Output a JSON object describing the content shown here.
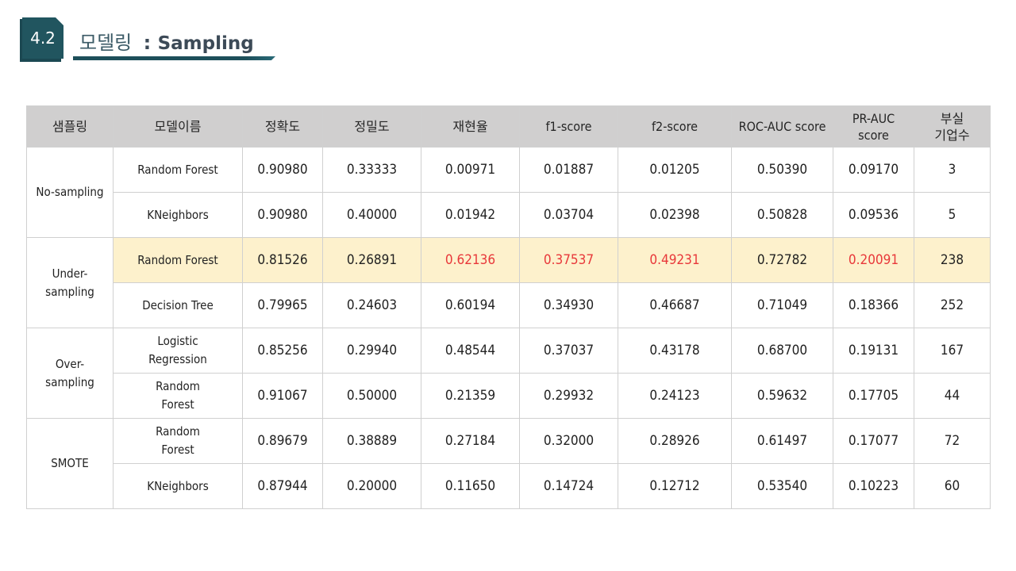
{
  "header": {
    "section_number": "4.2",
    "title_ko": "모델링",
    "title_sep": " : ",
    "title_en": "Sampling"
  },
  "table": {
    "columns": [
      "샘플링",
      "모델이름",
      "정확도",
      "정밀도",
      "재현율",
      "f1-score",
      "f2-score",
      "ROC-AUC score",
      "PR-AUC score",
      "부실\n기업수"
    ],
    "groups": [
      {
        "name": "No-sampling",
        "rows": [
          {
            "model": "Random Forest",
            "values": [
              "0.90980",
              "0.33333",
              "0.00971",
              "0.01887",
              "0.01205",
              "0.50390",
              "0.09170",
              "3"
            ]
          },
          {
            "model": "KNeighbors",
            "values": [
              "0.90980",
              "0.40000",
              "0.01942",
              "0.03704",
              "0.02398",
              "0.50828",
              "0.09536",
              "5"
            ]
          }
        ]
      },
      {
        "name": "Under-sampling",
        "rows": [
          {
            "model": "Random Forest",
            "values": [
              "0.81526",
              "0.26891",
              "0.62136",
              "0.37537",
              "0.49231",
              "0.72782",
              "0.20091",
              "238"
            ]
          },
          {
            "model": "Decision Tree",
            "values": [
              "0.79965",
              "0.24603",
              "0.60194",
              "0.34930",
              "0.46687",
              "0.71049",
              "0.18366",
              "252"
            ]
          }
        ]
      },
      {
        "name": "Over-\nsampling",
        "rows": [
          {
            "model": "Logistic\nRegression",
            "values": [
              "0.85256",
              "0.29940",
              "0.48544",
              "0.37037",
              "0.43178",
              "0.68700",
              "0.19131",
              "167"
            ]
          },
          {
            "model": "Random\nForest",
            "values": [
              "0.91067",
              "0.50000",
              "0.21359",
              "0.29932",
              "0.24123",
              "0.59632",
              "0.17705",
              "44"
            ]
          }
        ]
      },
      {
        "name": "SMOTE",
        "rows": [
          {
            "model": "Random\nForest",
            "values": [
              "0.89679",
              "0.38889",
              "0.27184",
              "0.32000",
              "0.28926",
              "0.61497",
              "0.17077",
              "72"
            ]
          },
          {
            "model": "KNeighbors",
            "values": [
              "0.87944",
              "0.20000",
              "0.11650",
              "0.14724",
              "0.12712",
              "0.53540",
              "0.10223",
              "60"
            ]
          }
        ]
      }
    ]
  },
  "colors": {
    "highlight_row": "#fdf1cc",
    "highlight_text": "#e8383a",
    "header_bg": "#d0cfcf",
    "badge": "#21555f"
  }
}
